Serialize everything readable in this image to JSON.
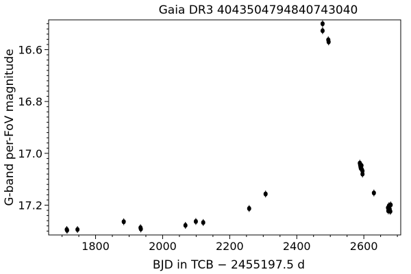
{
  "chart_data": {
    "type": "scatter",
    "title": "Gaia DR3 4043504794840743040",
    "xlabel": "BJD in TCB − 2455197.5 d",
    "ylabel": "G-band per-FoV magnitude",
    "xlim": [
      1660,
      2710
    ],
    "ylim": [
      17.315,
      16.485
    ],
    "y_inverted": true,
    "grid": false,
    "x_ticks": [
      1800,
      2000,
      2200,
      2400,
      2600
    ],
    "x_tick_labels": [
      "1800",
      "2000",
      "2200",
      "2400",
      "2600"
    ],
    "y_ticks": [
      16.6,
      16.8,
      17.0,
      17.2
    ],
    "y_tick_labels": [
      "16.6",
      "16.8",
      "17.0",
      "17.2"
    ],
    "marker_color": "#000000",
    "points": [
      {
        "x": 1714,
        "y": 17.294
      },
      {
        "x": 1715,
        "y": 17.297
      },
      {
        "x": 1746,
        "y": 17.294
      },
      {
        "x": 1884,
        "y": 17.264
      },
      {
        "x": 1934,
        "y": 17.287
      },
      {
        "x": 1935,
        "y": 17.292
      },
      {
        "x": 2068,
        "y": 17.278
      },
      {
        "x": 2099,
        "y": 17.263
      },
      {
        "x": 2121,
        "y": 17.267
      },
      {
        "x": 2258,
        "y": 17.213
      },
      {
        "x": 2307,
        "y": 17.157
      },
      {
        "x": 2477,
        "y": 16.5
      },
      {
        "x": 2477,
        "y": 16.527
      },
      {
        "x": 2494,
        "y": 16.562
      },
      {
        "x": 2495,
        "y": 16.57
      },
      {
        "x": 2588,
        "y": 17.038
      },
      {
        "x": 2589,
        "y": 17.045
      },
      {
        "x": 2590,
        "y": 17.052
      },
      {
        "x": 2591,
        "y": 17.058
      },
      {
        "x": 2593,
        "y": 17.047
      },
      {
        "x": 2594,
        "y": 17.062
      },
      {
        "x": 2596,
        "y": 17.068
      },
      {
        "x": 2596,
        "y": 17.08
      },
      {
        "x": 2630,
        "y": 17.153
      },
      {
        "x": 2672,
        "y": 17.21
      },
      {
        "x": 2673,
        "y": 17.222
      },
      {
        "x": 2675,
        "y": 17.202
      },
      {
        "x": 2677,
        "y": 17.215
      },
      {
        "x": 2679,
        "y": 17.224
      },
      {
        "x": 2680,
        "y": 17.199
      }
    ]
  }
}
